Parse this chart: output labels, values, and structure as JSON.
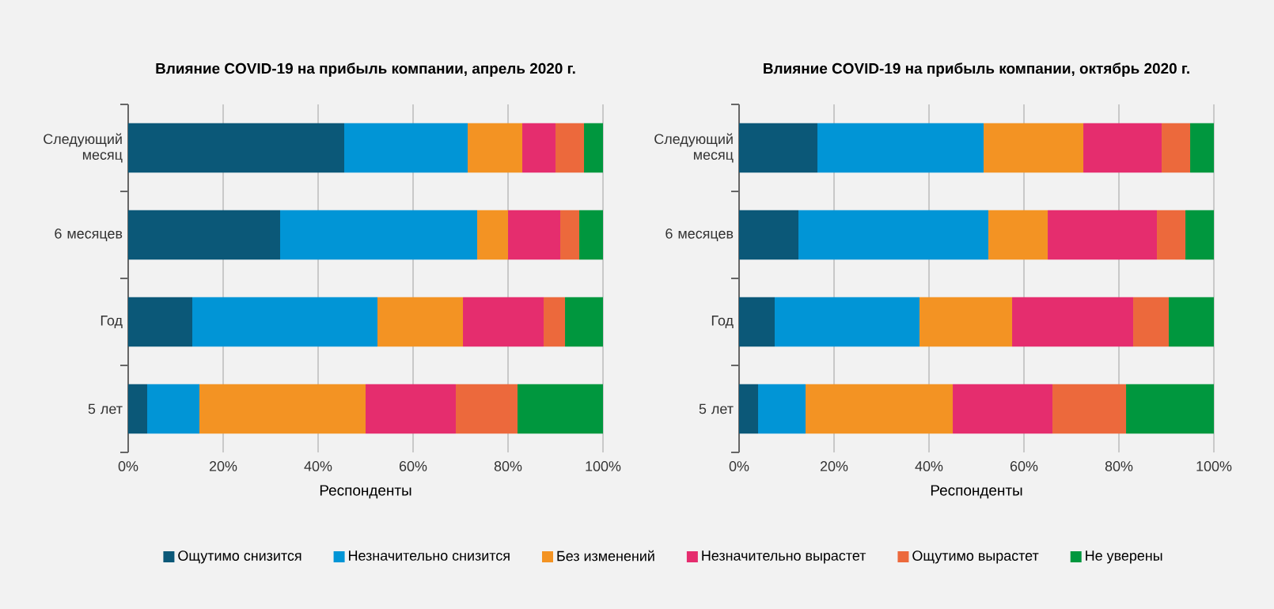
{
  "chart_data": [
    {
      "type": "bar",
      "orientation": "horizontal",
      "stacked": true,
      "title": "Влияние COVID-19 на прибыль компании, апрель 2020 г.",
      "xlabel": "Респонденты",
      "categories": [
        "Следующий месяц",
        "6 месяцев",
        "Год",
        "5 лет"
      ],
      "xlim": [
        0,
        100
      ],
      "xticks": [
        {
          "value": 0,
          "label": "0%"
        },
        {
          "value": 20,
          "label": "20%"
        },
        {
          "value": 40,
          "label": "40%"
        },
        {
          "value": 60,
          "label": "60%"
        },
        {
          "value": 80,
          "label": "80%"
        },
        {
          "value": 100,
          "label": "100%"
        }
      ],
      "grid": "x",
      "legend": "bottom",
      "series": [
        {
          "name": "Ощутимо снизится",
          "color": "#0b5878",
          "values": [
            45.5,
            32,
            13.5,
            4
          ]
        },
        {
          "name": "Незначительно снизится",
          "color": "#0195d6",
          "values": [
            26,
            41.5,
            39,
            11
          ]
        },
        {
          "name": "Без изменений",
          "color": "#f39323",
          "values": [
            11.5,
            6.5,
            18,
            35
          ]
        },
        {
          "name": "Незначительно вырастет",
          "color": "#e52d6e",
          "values": [
            7,
            11,
            17,
            19
          ]
        },
        {
          "name": "Ощутимо вырастет",
          "color": "#ec693c",
          "values": [
            6,
            4,
            4.5,
            13
          ]
        },
        {
          "name": "Не уверены",
          "color": "#00973e",
          "values": [
            4,
            5,
            8,
            18
          ]
        }
      ]
    },
    {
      "type": "bar",
      "orientation": "horizontal",
      "stacked": true,
      "title": "Влияние COVID-19 на прибыль компании, октябрь 2020 г.",
      "xlabel": "Респонденты",
      "categories": [
        "Следующий месяц",
        "6 месяцев",
        "Год",
        "5 лет"
      ],
      "xlim": [
        0,
        100
      ],
      "xticks": [
        {
          "value": 0,
          "label": "0%"
        },
        {
          "value": 20,
          "label": "20%"
        },
        {
          "value": 40,
          "label": "40%"
        },
        {
          "value": 60,
          "label": "60%"
        },
        {
          "value": 80,
          "label": "80%"
        },
        {
          "value": 100,
          "label": "100%"
        }
      ],
      "grid": "x",
      "series": [
        {
          "color": "#0b5878",
          "values": [
            16.5,
            12.5,
            7.5,
            4
          ]
        },
        {
          "color": "#0195d6",
          "values": [
            35,
            40,
            30.5,
            10
          ]
        },
        {
          "color": "#f39323",
          "values": [
            21,
            12.5,
            19.5,
            31
          ]
        },
        {
          "color": "#e52d6e",
          "values": [
            16.5,
            23,
            25.5,
            21
          ]
        },
        {
          "color": "#ec693c",
          "values": [
            6,
            6,
            7.5,
            15.5
          ]
        },
        {
          "color": "#00973e",
          "values": [
            5,
            6,
            9.5,
            18.5
          ]
        }
      ]
    }
  ]
}
